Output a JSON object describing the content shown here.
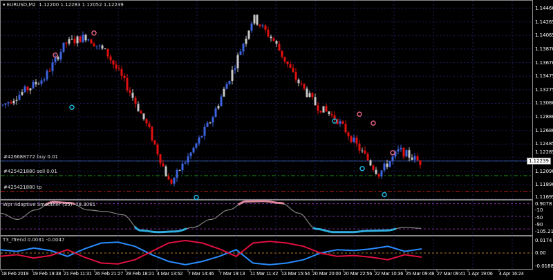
{
  "header": {
    "symbol": "EURUSD,M2",
    "ohlc": "1.12200 1.12283 1.12052 1.12239"
  },
  "price_axis": {
    "labels": [
      "1.14460",
      "1.14265",
      "1.14065",
      "1.13870",
      "1.13670",
      "1.13475",
      "1.13275",
      "1.13080",
      "1.12880",
      "1.12680",
      "1.12485",
      "1.12285",
      "1.12090",
      "1.11890",
      "1.11695"
    ],
    "current": "1.12239",
    "max": 1.1446,
    "min": 1.11695
  },
  "orders": [
    {
      "label": "#426688772 buy 0.01",
      "price": 1.12239,
      "color": "#1aa01a"
    },
    {
      "label": "#425421880 sell 0.01",
      "price": 1.12025,
      "color": "#1aa01a"
    },
    {
      "label": "#425421880 tp",
      "price": 1.11795,
      "color": "#c81e1e"
    }
  ],
  "price_path": [
    1.1305,
    1.1325,
    1.1345,
    1.1395,
    1.1405,
    1.138,
    1.133,
    1.127,
    1.119,
    1.1235,
    1.1285,
    1.1355,
    1.1433,
    1.1398,
    1.1345,
    1.1305,
    1.1285,
    1.1245,
    1.1205,
    1.124,
    1.1222
  ],
  "markers": [
    {
      "index": 33,
      "price": 1.141,
      "type": "sell"
    },
    {
      "index": 19,
      "price": 1.1378,
      "type": "sell"
    },
    {
      "index": 25,
      "price": 1.1302,
      "type": "buy"
    },
    {
      "index": 70,
      "price": 1.1171,
      "type": "buy"
    },
    {
      "index": 120,
      "price": 1.1282,
      "type": "buy"
    },
    {
      "index": 129,
      "price": 1.1292,
      "type": "sell"
    },
    {
      "index": 134,
      "price": 1.1279,
      "type": "sell"
    },
    {
      "index": 130,
      "price": 1.1213,
      "type": "buy"
    },
    {
      "index": 141,
      "price": 1.1236,
      "type": "sell"
    },
    {
      "index": 138,
      "price": 1.1175,
      "type": "buy"
    }
  ],
  "colors": {
    "bull": "#3d63e0",
    "bear": "#e01010",
    "neutral": "#c8c8c8",
    "grid": "#1c1c5a",
    "buy_marker": "#1fb6e0",
    "sell_marker": "#e06080"
  },
  "wpr": {
    "title": "Wpr Adaptive Smoother (35) -78.3061",
    "levels": [
      "0.9078",
      "-10",
      "-50",
      "-90",
      "-105.2174"
    ],
    "path": [
      -40,
      -60,
      -30,
      -5,
      -8,
      -30,
      -35,
      -45,
      -95,
      -100,
      -98,
      -85,
      -60,
      -30,
      -3,
      -2,
      -8,
      -40,
      -90,
      -100,
      -100,
      -96,
      -95,
      -85,
      -88
    ]
  },
  "t3": {
    "title": "T3_ITrend  0.0031 -0.0047",
    "levels": [
      "0.0174",
      "0.00",
      "-0.0188"
    ],
    "blue": [
      0.004,
      0.002,
      0.006,
      0.003,
      -0.004,
      0.005,
      0.012,
      0.013,
      0.008,
      -0.002,
      -0.01,
      -0.014,
      -0.01,
      -0.004,
      0.004,
      -0.012,
      -0.014,
      -0.012,
      -0.008,
      0.0,
      0.004,
      0.003,
      0.005,
      0.008,
      0.002,
      0.005
    ],
    "red": [
      -0.004,
      -0.002,
      -0.006,
      -0.003,
      0.004,
      -0.005,
      -0.012,
      -0.013,
      -0.008,
      0.002,
      0.012,
      0.015,
      0.012,
      0.005,
      -0.004,
      0.012,
      0.014,
      0.012,
      0.008,
      0.0,
      -0.004,
      -0.003,
      -0.005,
      -0.008,
      -0.002,
      -0.005
    ]
  },
  "time_axis": [
    "18 Feb 2019",
    "19 Feb 19:38",
    "21 Feb 11:31",
    "26 Feb 21:27",
    "28 Feb 18:21",
    "4 Mar 13:52",
    "7 Mar 14:46",
    "7 Mar 19:13",
    "11 Mar 11:42",
    "13 Mar 15:54",
    "20 Mar 20:00",
    "20 Mar 22:56",
    "22 Mar 10:36",
    "25 Mar 09:48",
    "27 Mar 09:41",
    "1 Apr 19:06",
    "4 Apr 16:24"
  ]
}
